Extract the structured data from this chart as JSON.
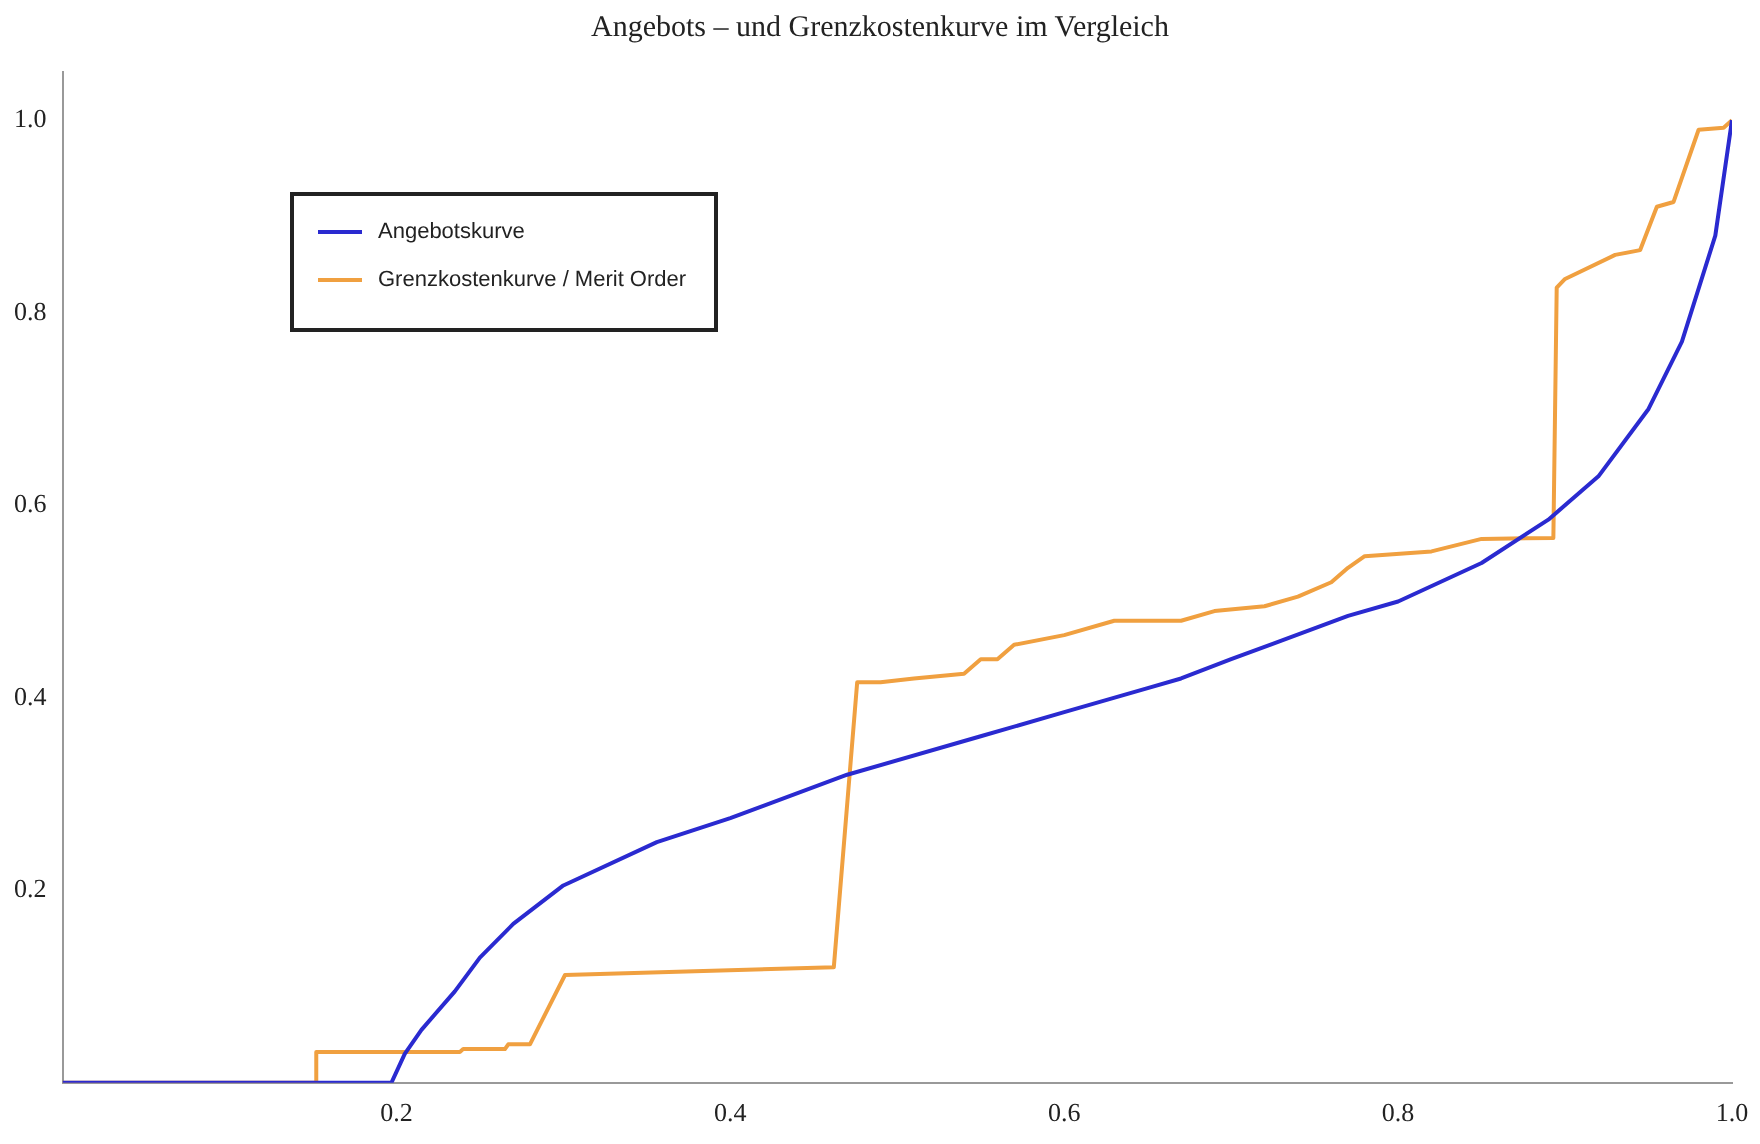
{
  "chart_data": {
    "type": "line",
    "title": "Angebots – und Grenzkostenkurve im Vergleich",
    "xlim": [
      0,
      1.0
    ],
    "ylim": [
      0,
      1.05
    ],
    "xticks": [
      0.2,
      0.4,
      0.6,
      0.8,
      {
        "value": 1,
        "label": "1.0"
      }
    ],
    "yticks": [
      0.2,
      0.4,
      0.6,
      0.8,
      {
        "value": 1,
        "label": "1.0"
      }
    ],
    "grid": false,
    "legend": "top left",
    "marker": "none",
    "line_style": "solid",
    "series": [
      {
        "name": "Angebotskurve",
        "color": "#2a2ad0",
        "x": [
          0,
          0.152,
          0.197,
          0.205,
          0.215,
          0.235,
          0.25,
          0.27,
          0.3,
          0.356,
          0.4,
          0.47,
          0.55,
          0.6,
          0.65,
          0.67,
          0.7,
          0.77,
          0.8,
          0.85,
          0.89,
          0.92,
          0.95,
          0.97,
          0.99,
          1.0
        ],
        "values": [
          0,
          0,
          0,
          0.03,
          0.055,
          0.095,
          0.13,
          0.165,
          0.205,
          0.25,
          0.275,
          0.32,
          0.36,
          0.385,
          0.41,
          0.42,
          0.44,
          0.485,
          0.5,
          0.54,
          0.585,
          0.63,
          0.7,
          0.77,
          0.88,
          1.0
        ]
      },
      {
        "name": "Grenzkostenkurve / Merit Order",
        "color": "#f0a040",
        "x": [
          0,
          0.152,
          0.152,
          0.238,
          0.24,
          0.265,
          0.267,
          0.28,
          0.301,
          0.462,
          0.476,
          0.49,
          0.51,
          0.54,
          0.55,
          0.56,
          0.57,
          0.6,
          0.63,
          0.67,
          0.69,
          0.72,
          0.74,
          0.76,
          0.77,
          0.78,
          0.82,
          0.85,
          0.893,
          0.895,
          0.9,
          0.93,
          0.945,
          0.955,
          0.965,
          0.98,
          0.995,
          1.0
        ],
        "values": [
          0,
          0,
          0.032,
          0.032,
          0.035,
          0.035,
          0.04,
          0.04,
          0.112,
          0.12,
          0.416,
          0.416,
          0.42,
          0.425,
          0.44,
          0.44,
          0.455,
          0.465,
          0.48,
          0.48,
          0.49,
          0.495,
          0.505,
          0.52,
          0.535,
          0.547,
          0.552,
          0.565,
          0.566,
          0.826,
          0.835,
          0.86,
          0.865,
          0.91,
          0.915,
          0.99,
          0.992,
          1.0
        ]
      }
    ]
  }
}
